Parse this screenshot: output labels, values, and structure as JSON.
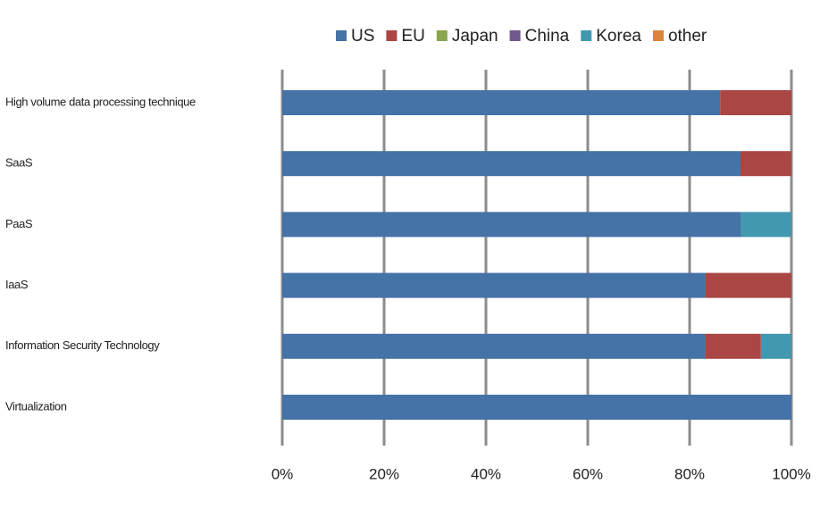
{
  "chart_data": {
    "type": "stacked-bar-horizontal",
    "categories": [
      "High volume data processing technique",
      "SaaS",
      "PaaS",
      "IaaS",
      "Information Security Technology",
      "Virtualization"
    ],
    "series": [
      {
        "name": "US",
        "color": "#4572a7",
        "values": [
          86,
          90,
          90,
          83,
          83,
          100
        ]
      },
      {
        "name": "EU",
        "color": "#aa4643",
        "values": [
          14,
          10,
          0,
          17,
          11,
          0
        ]
      },
      {
        "name": "Japan",
        "color": "#89a54e",
        "values": [
          0,
          0,
          0,
          0,
          0,
          0
        ]
      },
      {
        "name": "China",
        "color": "#71588f",
        "values": [
          0,
          0,
          0,
          0,
          0,
          0
        ]
      },
      {
        "name": "Korea",
        "color": "#4198af",
        "values": [
          0,
          0,
          10,
          0,
          6,
          0
        ]
      },
      {
        "name": "other",
        "color": "#db843d",
        "values": [
          0,
          0,
          0,
          0,
          0,
          0
        ]
      }
    ],
    "xlim": [
      0,
      100
    ],
    "xticks": [
      {
        "value": 0,
        "label": "0%"
      },
      {
        "value": 20,
        "label": "20%"
      },
      {
        "value": 40,
        "label": "40%"
      },
      {
        "value": 60,
        "label": "60%"
      },
      {
        "value": 80,
        "label": "80%"
      },
      {
        "value": 100,
        "label": "100%"
      }
    ],
    "grid": true,
    "legend": "top"
  }
}
